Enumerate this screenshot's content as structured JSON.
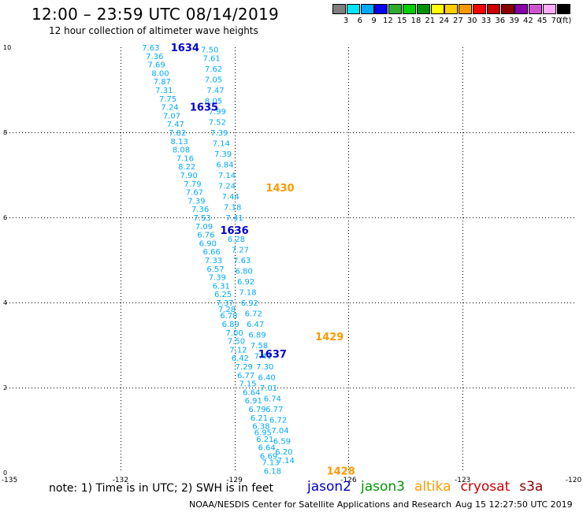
{
  "header": {
    "title": "12:00 – 23:59 UTC 08/14/2019",
    "subtitle": "12 hour collection of altimeter wave heights"
  },
  "color_legend": {
    "unit": "(ft)",
    "colors": [
      "#7f7f7f",
      "#00e5ff",
      "#00aaff",
      "#0000ff",
      "#2eae2e",
      "#00d000",
      "#009000",
      "#ffff00",
      "#ffcc00",
      "#ff9900",
      "#ff0000",
      "#cc0000",
      "#880000",
      "#8800aa",
      "#cc55cc",
      "#ffaaff",
      "#000000"
    ],
    "ticks": [
      "3",
      "6",
      "9",
      "12",
      "15",
      "18",
      "21",
      "24",
      "27",
      "30",
      "33",
      "36",
      "39",
      "42",
      "45",
      "70"
    ]
  },
  "footer": {
    "note": "note: 1) Time is in UTC; 2) SWH is in feet",
    "credit": "NOAA/NESDIS Center for Satellite Applications and Research",
    "timestamp": "Aug 15 12:27:50 UTC 2019",
    "satellites": [
      {
        "name": "jason2",
        "color": "#0000cc"
      },
      {
        "name": "jason3",
        "color": "#009900"
      },
      {
        "name": "altika",
        "color": "#ff9900"
      },
      {
        "name": "cryosat",
        "color": "#cc0000"
      },
      {
        "name": "s3a",
        "color": "#880000"
      }
    ]
  },
  "chart_data": {
    "type": "scatter",
    "title": "12:00 – 23:59 UTC 08/14/2019",
    "subtitle": "12 hour collection of altimeter wave heights",
    "xlim": [
      -135,
      -120
    ],
    "ylim": [
      0,
      10
    ],
    "x_ticks": [
      "-135",
      "-132",
      "-129",
      "-126",
      "-123",
      "-120"
    ],
    "y_ticks": [
      "0",
      "2",
      "4",
      "6",
      "8",
      "10"
    ],
    "grid": true,
    "label_color": "#00aaff",
    "tracks": [
      {
        "satellite": "jason2",
        "color": "#0000cc",
        "points": [
          {
            "lon": -131.2,
            "lat": 10.0,
            "v": "7.63"
          },
          {
            "lon": -131.1,
            "lat": 9.8,
            "v": "7.36"
          },
          {
            "lon": -131.05,
            "lat": 9.6,
            "v": "7.69"
          },
          {
            "lon": -130.95,
            "lat": 9.4,
            "v": "8.00"
          },
          {
            "lon": -130.9,
            "lat": 9.2,
            "v": "7.87"
          },
          {
            "lon": -130.85,
            "lat": 9.0,
            "v": "7.31"
          },
          {
            "lon": -130.75,
            "lat": 8.8,
            "v": "7.75"
          },
          {
            "lon": -130.7,
            "lat": 8.6,
            "v": "7.24"
          },
          {
            "lon": -130.65,
            "lat": 8.4,
            "v": "7.07"
          },
          {
            "lon": -130.55,
            "lat": 8.2,
            "v": "7.47"
          },
          {
            "lon": -130.5,
            "lat": 8.0,
            "v": "7.82"
          },
          {
            "lon": -130.45,
            "lat": 7.8,
            "v": "8.13"
          },
          {
            "lon": -130.4,
            "lat": 7.6,
            "v": "8.08"
          },
          {
            "lon": -130.3,
            "lat": 7.4,
            "v": "7.16"
          },
          {
            "lon": -130.25,
            "lat": 7.2,
            "v": "8.22"
          },
          {
            "lon": -130.2,
            "lat": 7.0,
            "v": "7.90"
          },
          {
            "lon": -130.1,
            "lat": 6.8,
            "v": "7.79"
          },
          {
            "lon": -130.05,
            "lat": 6.6,
            "v": "7.67"
          },
          {
            "lon": -130.0,
            "lat": 6.4,
            "v": "7.39"
          },
          {
            "lon": -129.9,
            "lat": 6.2,
            "v": "7.36"
          },
          {
            "lon": -129.85,
            "lat": 6.0,
            "v": "7.53"
          },
          {
            "lon": -129.8,
            "lat": 5.8,
            "v": "7.09"
          },
          {
            "lon": -129.75,
            "lat": 5.6,
            "v": "6.76"
          },
          {
            "lon": -129.7,
            "lat": 5.4,
            "v": "6.90"
          },
          {
            "lon": -129.6,
            "lat": 5.2,
            "v": "6.66"
          },
          {
            "lon": -129.55,
            "lat": 5.0,
            "v": "7.33"
          },
          {
            "lon": -129.5,
            "lat": 4.8,
            "v": "6.57"
          },
          {
            "lon": -129.45,
            "lat": 4.6,
            "v": "7.39"
          },
          {
            "lon": -129.35,
            "lat": 4.4,
            "v": "6.31"
          },
          {
            "lon": -129.3,
            "lat": 4.2,
            "v": "6.25"
          },
          {
            "lon": -129.25,
            "lat": 4.0,
            "v": "7.37"
          },
          {
            "lon": -129.2,
            "lat": 3.85,
            "v": "7.28"
          },
          {
            "lon": -129.15,
            "lat": 3.7,
            "v": "6.78"
          },
          {
            "lon": -129.1,
            "lat": 3.5,
            "v": "6.89"
          },
          {
            "lon": -129.0,
            "lat": 3.3,
            "v": "7.00"
          },
          {
            "lon": -128.95,
            "lat": 3.1,
            "v": "7.50"
          },
          {
            "lon": -128.9,
            "lat": 2.9,
            "v": "7.12"
          },
          {
            "lon": -128.85,
            "lat": 2.7,
            "v": "6.42"
          },
          {
            "lon": -128.75,
            "lat": 2.5,
            "v": "7.29"
          },
          {
            "lon": -128.7,
            "lat": 2.3,
            "v": "6.77"
          },
          {
            "lon": -128.65,
            "lat": 2.1,
            "v": "7.15"
          },
          {
            "lon": -128.55,
            "lat": 1.9,
            "v": "6.64"
          },
          {
            "lon": -128.5,
            "lat": 1.7,
            "v": "6.91"
          },
          {
            "lon": -128.4,
            "lat": 1.5,
            "v": "6.79"
          },
          {
            "lon": -128.35,
            "lat": 1.3,
            "v": "6.21"
          },
          {
            "lon": -128.3,
            "lat": 1.1,
            "v": "6.38"
          },
          {
            "lon": -128.25,
            "lat": 0.95,
            "v": "6.95"
          },
          {
            "lon": -128.2,
            "lat": 0.8,
            "v": "6.21"
          },
          {
            "lon": -128.15,
            "lat": 0.6,
            "v": "6.64"
          },
          {
            "lon": -128.1,
            "lat": 0.4,
            "v": "6.69"
          },
          {
            "lon": -128.05,
            "lat": 0.25,
            "v": "7.13"
          },
          {
            "lon": -128.0,
            "lat": 0.05,
            "v": "6.18"
          }
        ],
        "markers": [
          {
            "lon": -130.3,
            "lat": 10.0,
            "label": "1634"
          },
          {
            "lon": -129.8,
            "lat": 8.6,
            "label": "1635"
          },
          {
            "lon": -129.0,
            "lat": 5.7,
            "label": "1636"
          },
          {
            "lon": -128.0,
            "lat": 2.8,
            "label": "1637"
          }
        ]
      },
      {
        "satellite": "altika",
        "color": "#ff9900",
        "points": [
          {
            "lon": -129.65,
            "lat": 9.95,
            "v": "7.50"
          },
          {
            "lon": -129.6,
            "lat": 9.75,
            "v": "7.61"
          },
          {
            "lon": -129.55,
            "lat": 9.5,
            "v": "7.62"
          },
          {
            "lon": -129.55,
            "lat": 9.25,
            "v": "7.05"
          },
          {
            "lon": -129.5,
            "lat": 9.0,
            "v": "7.47"
          },
          {
            "lon": -129.55,
            "lat": 8.75,
            "v": "8.05"
          },
          {
            "lon": -129.45,
            "lat": 8.5,
            "v": "7.99"
          },
          {
            "lon": -129.45,
            "lat": 8.25,
            "v": "7.52"
          },
          {
            "lon": -129.4,
            "lat": 8.0,
            "v": "7.39"
          },
          {
            "lon": -129.35,
            "lat": 7.75,
            "v": "7.14"
          },
          {
            "lon": -129.3,
            "lat": 7.5,
            "v": "7.39"
          },
          {
            "lon": -129.25,
            "lat": 7.25,
            "v": "6.84"
          },
          {
            "lon": -129.2,
            "lat": 7.0,
            "v": "7.14"
          },
          {
            "lon": -129.2,
            "lat": 6.75,
            "v": "7.24"
          },
          {
            "lon": -129.1,
            "lat": 6.5,
            "v": "7.44"
          },
          {
            "lon": -129.05,
            "lat": 6.25,
            "v": "7.18"
          },
          {
            "lon": -129.0,
            "lat": 6.0,
            "v": "7.41"
          },
          {
            "lon": -128.95,
            "lat": 5.5,
            "v": "6.28"
          },
          {
            "lon": -128.85,
            "lat": 5.25,
            "v": "7.27"
          },
          {
            "lon": -128.8,
            "lat": 5.0,
            "v": "7.63"
          },
          {
            "lon": -128.75,
            "lat": 4.75,
            "v": "6.80"
          },
          {
            "lon": -128.7,
            "lat": 4.5,
            "v": "6.92"
          },
          {
            "lon": -128.65,
            "lat": 4.25,
            "v": "7.18"
          },
          {
            "lon": -128.6,
            "lat": 4.0,
            "v": "6.92"
          },
          {
            "lon": -128.5,
            "lat": 3.75,
            "v": "6.72"
          },
          {
            "lon": -128.45,
            "lat": 3.5,
            "v": "6.47"
          },
          {
            "lon": -128.4,
            "lat": 3.25,
            "v": "6.89"
          },
          {
            "lon": -128.35,
            "lat": 3.0,
            "v": "7.58"
          },
          {
            "lon": -128.25,
            "lat": 2.75,
            "v": "7.41"
          },
          {
            "lon": -128.2,
            "lat": 2.5,
            "v": "7.30"
          },
          {
            "lon": -128.15,
            "lat": 2.25,
            "v": "6.40"
          },
          {
            "lon": -128.1,
            "lat": 2.0,
            "v": "7.01"
          },
          {
            "lon": -128.0,
            "lat": 1.75,
            "v": "6.74"
          },
          {
            "lon": -127.95,
            "lat": 1.5,
            "v": "6.77"
          },
          {
            "lon": -127.85,
            "lat": 1.25,
            "v": "6.72"
          },
          {
            "lon": -127.8,
            "lat": 1.0,
            "v": "7.04"
          },
          {
            "lon": -127.75,
            "lat": 0.75,
            "v": "6.59"
          },
          {
            "lon": -127.7,
            "lat": 0.5,
            "v": "6.20"
          },
          {
            "lon": -127.65,
            "lat": 0.3,
            "v": "7.14"
          }
        ],
        "markers": [
          {
            "lon": -127.8,
            "lat": 6.7,
            "label": "1430"
          },
          {
            "lon": -126.5,
            "lat": 3.2,
            "label": "1429"
          },
          {
            "lon": -126.2,
            "lat": 0.05,
            "label": "1428"
          }
        ]
      }
    ]
  }
}
